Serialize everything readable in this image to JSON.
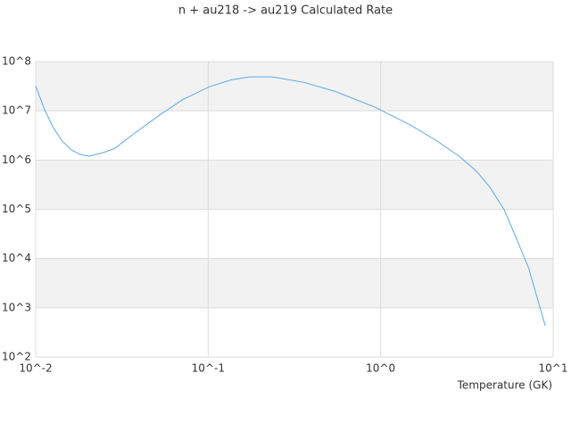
{
  "chart_data": {
    "type": "line",
    "title": "n + au218 -> au219 Calculated Rate",
    "x_label": "Temperature (GK)",
    "log_x": true,
    "log_y": true,
    "grid": true,
    "x": [
      0.01,
      0.01127,
      0.0127,
      0.0143,
      0.0161,
      0.0181,
      0.0204,
      0.0244,
      0.0285,
      0.037,
      0.053,
      0.0714,
      0.102,
      0.1375,
      0.174,
      0.235,
      0.357,
      0.541,
      0.92,
      1.48,
      2.1,
      2.85,
      3.6,
      4.3,
      5.2,
      6.2,
      7.2,
      9.0
    ],
    "series": [
      {
        "name": "Rate",
        "color": "#5aa9e6",
        "values": [
          32000000,
          10500000,
          4400000,
          2400000,
          1600000,
          1300000,
          1200000,
          1400000,
          1700000,
          3400000,
          8500000,
          17000000,
          31000000,
          43000000,
          49000000,
          49000000,
          38000000,
          25000000,
          12000000,
          5200000,
          2500000,
          1200000,
          590000,
          280000,
          98000,
          23000,
          6500,
          430
        ]
      }
    ],
    "xlim": [
      0.01,
      10
    ],
    "xticks": [
      {
        "value": 0.01,
        "label": "10^-2"
      },
      {
        "value": 0.1,
        "label": "10^-1"
      },
      {
        "value": 1,
        "label": "10^0"
      },
      {
        "value": 10,
        "label": "10^1"
      }
    ],
    "ylim": [
      100,
      100000000
    ],
    "yticks": [
      {
        "value": 100,
        "label": "10^2"
      },
      {
        "value": 1000,
        "label": "10^3"
      },
      {
        "value": 10000,
        "label": "10^4"
      },
      {
        "value": 100000,
        "label": "10^5"
      },
      {
        "value": 1000000,
        "label": "10^6"
      },
      {
        "value": 10000000,
        "label": "10^7"
      },
      {
        "value": 100000000,
        "label": "10^8"
      }
    ]
  }
}
